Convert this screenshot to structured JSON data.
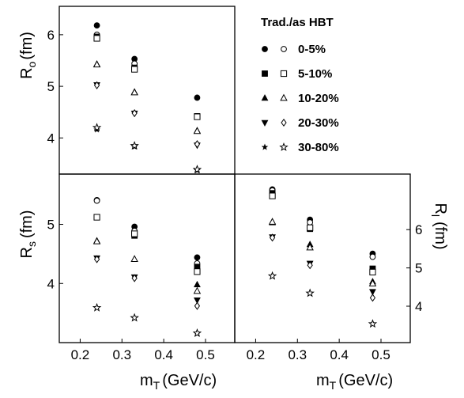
{
  "chart_data": {
    "type": "scatter",
    "legend": {
      "title": "Trad./as HBT",
      "placement": "top-right",
      "entries": [
        "0-5%",
        "5-10%",
        "10-20%",
        "20-30%",
        "30-80%"
      ]
    },
    "series_style": {
      "0-5%": {
        "trad": "filled-circle",
        "as_hbt": "open-circle"
      },
      "5-10%": {
        "trad": "filled-square",
        "as_hbt": "open-square"
      },
      "10-20%": {
        "trad": "filled-triangle-up",
        "as_hbt": "open-triangle-up"
      },
      "20-30%": {
        "trad": "filled-triangle-down",
        "as_hbt": "open-diamond"
      },
      "30-80%": {
        "trad": "filled-star",
        "as_hbt": "open-star"
      }
    },
    "panels": [
      {
        "id": "Ro",
        "ylabel_main": "R",
        "ylabel_sub": "o",
        "ylabel_unit": "(fm)",
        "ylim": [
          3.3,
          6.55
        ],
        "yticks": [
          4,
          5,
          6
        ],
        "xlim": [
          0.15,
          0.57
        ],
        "mT": [
          0.24,
          0.33,
          0.48
        ],
        "series": [
          {
            "name": "0-5%",
            "trad": [
              6.18,
              5.53,
              4.78
            ],
            "as_hbt": [
              6.0,
              5.44,
              4.42
            ]
          },
          {
            "name": "5-10%",
            "trad": [
              5.96,
              5.36,
              4.42
            ],
            "as_hbt": [
              5.93,
              5.33,
              4.41
            ]
          },
          {
            "name": "10-20%",
            "trad": [
              5.43,
              4.89,
              4.14
            ],
            "as_hbt": [
              5.42,
              4.88,
              4.13
            ]
          },
          {
            "name": "20-30%",
            "trad": [
              5.03,
              4.48,
              3.86
            ],
            "as_hbt": [
              5.02,
              4.48,
              3.88
            ]
          },
          {
            "name": "30-80%",
            "trad": [
              4.16,
              3.83,
              3.37
            ],
            "as_hbt": [
              4.2,
              3.85,
              3.39
            ]
          }
        ]
      },
      {
        "id": "Rs",
        "ylabel_main": "R",
        "ylabel_sub": "s",
        "ylabel_unit": "(fm)",
        "ylim": [
          3.0,
          5.85
        ],
        "yticks": [
          4,
          5
        ],
        "xlim": [
          0.15,
          0.57
        ],
        "xticks": [
          0.2,
          0.3,
          0.4,
          0.5
        ],
        "xlabel_main": "m",
        "xlabel_sub": "T",
        "xlabel_unit": "(GeV/c)",
        "mT": [
          0.24,
          0.33,
          0.48
        ],
        "series": [
          {
            "name": "0-5%",
            "trad": [
              5.41,
              4.96,
              4.44
            ],
            "as_hbt": [
              5.4,
              4.89,
              4.34
            ]
          },
          {
            "name": "5-10%",
            "trad": [
              5.12,
              4.81,
              4.28
            ],
            "as_hbt": [
              5.12,
              4.84,
              4.2
            ]
          },
          {
            "name": "10-20%",
            "trad": [
              4.72,
              4.41,
              3.98
            ],
            "as_hbt": [
              4.71,
              4.41,
              3.87
            ]
          },
          {
            "name": "20-30%",
            "trad": [
              4.43,
              4.11,
              3.72
            ],
            "as_hbt": [
              4.41,
              4.09,
              3.62
            ]
          },
          {
            "name": "30-80%",
            "trad": [
              3.59,
              3.42,
              3.15
            ],
            "as_hbt": [
              3.59,
              3.42,
              3.16
            ]
          }
        ]
      },
      {
        "id": "Rl",
        "ylabel_main": "R",
        "ylabel_sub": "l",
        "ylabel_unit": "(fm)",
        "ylim": [
          3.05,
          7.45
        ],
        "yticks": [
          4,
          5,
          6
        ],
        "xlim": [
          0.15,
          0.57
        ],
        "xticks": [
          0.2,
          0.3,
          0.4,
          0.5
        ],
        "xlabel_main": "m",
        "xlabel_sub": "T",
        "xlabel_unit": "(GeV/c)",
        "mT": [
          0.24,
          0.33,
          0.48
        ],
        "series": [
          {
            "name": "0-5%",
            "trad": [
              7.05,
              6.26,
              5.37
            ],
            "as_hbt": [
              7.02,
              6.19,
              5.29
            ]
          },
          {
            "name": "5-10%",
            "trad": [
              6.95,
              6.02,
              4.98
            ],
            "as_hbt": [
              6.88,
              6.05,
              4.89
            ]
          },
          {
            "name": "10-20%",
            "trad": [
              6.18,
              5.61,
              4.64
            ],
            "as_hbt": [
              6.2,
              5.53,
              4.59
            ]
          },
          {
            "name": "20-30%",
            "trad": [
              5.81,
              5.12,
              4.38
            ],
            "as_hbt": [
              5.79,
              5.07,
              4.22
            ]
          },
          {
            "name": "30-80%",
            "trad": [
              4.79,
              4.34,
              3.54
            ],
            "as_hbt": [
              4.79,
              4.34,
              3.54
            ]
          }
        ]
      }
    ]
  }
}
